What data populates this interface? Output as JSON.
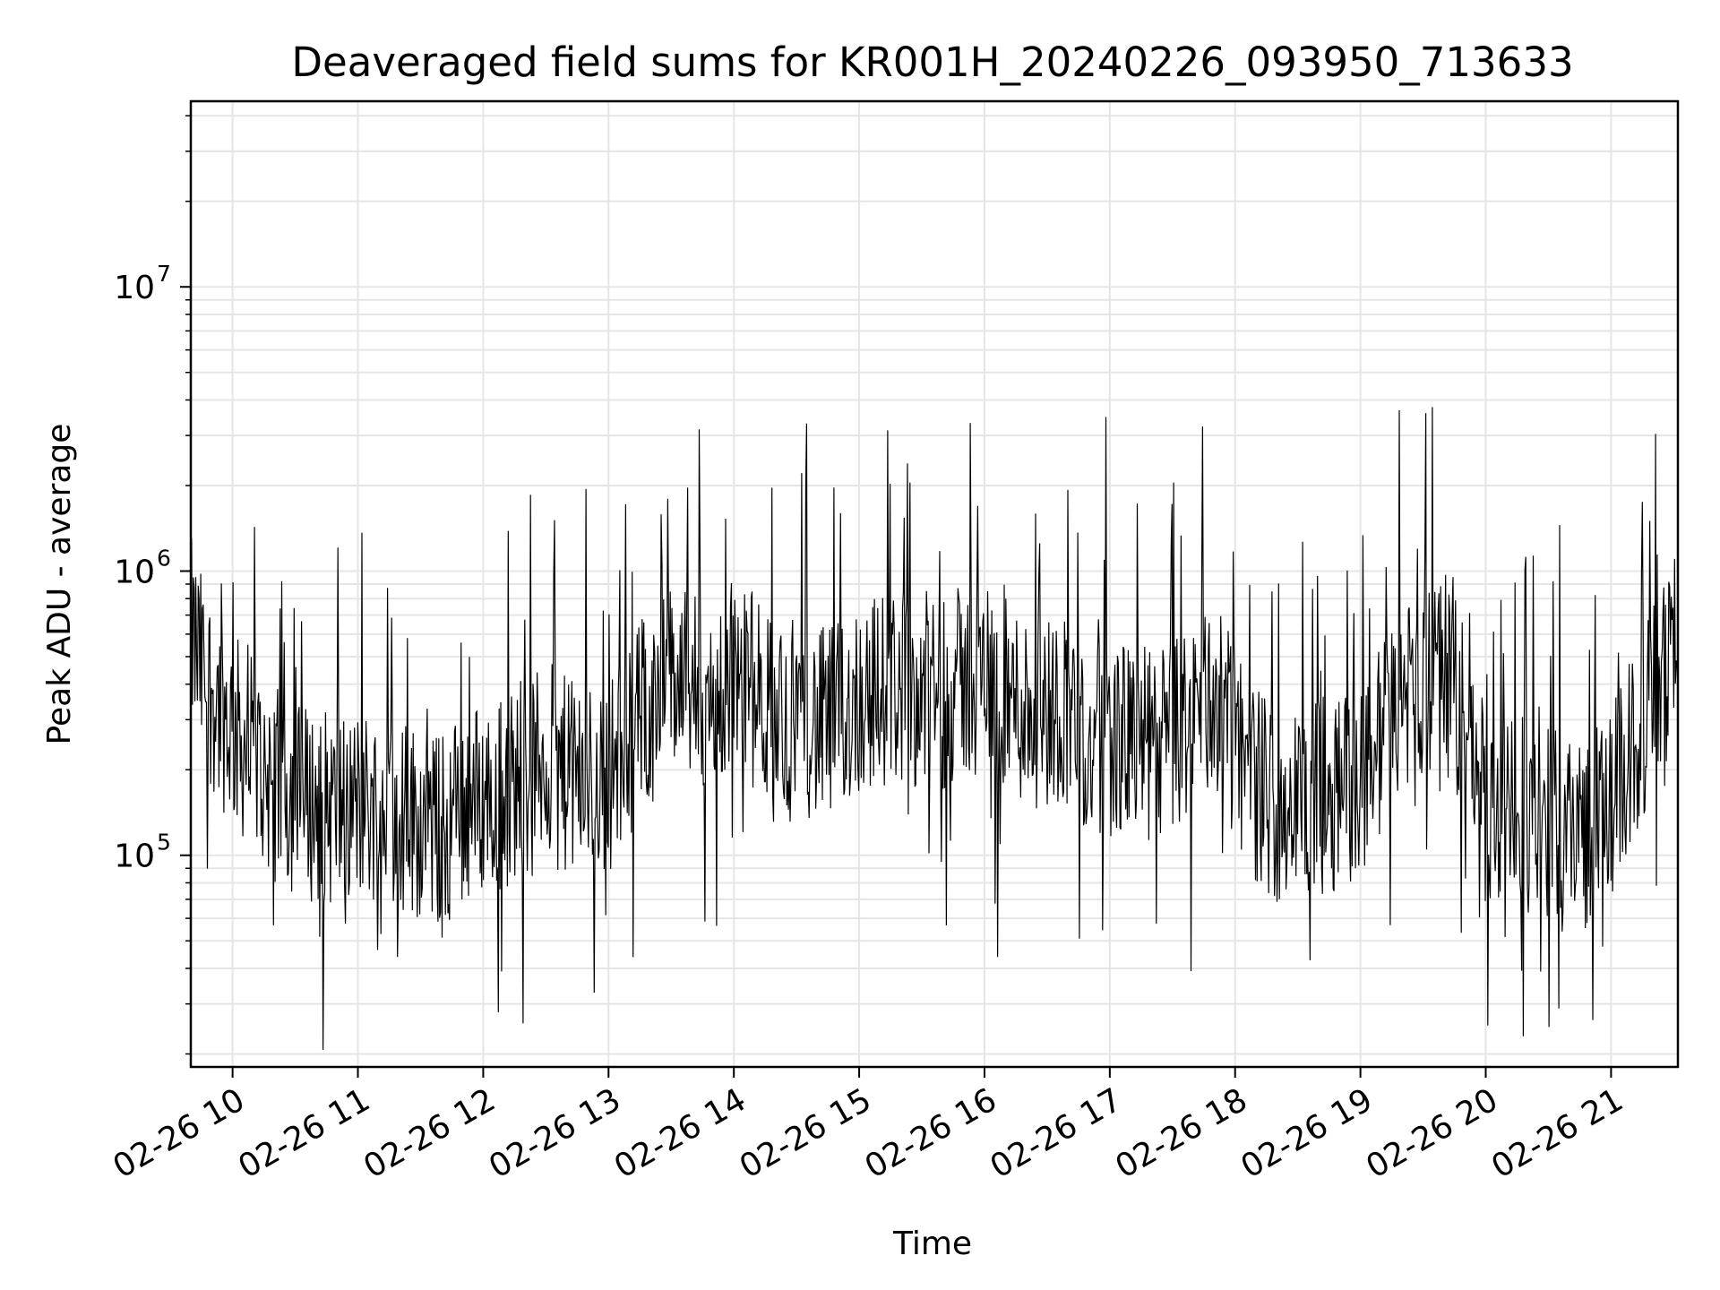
{
  "chart_data": {
    "type": "line",
    "title": "Deaveraged field sums for KR001H_20240226_093950_713633",
    "xlabel": "Time",
    "ylabel": "Peak ADU - average",
    "y_scale": "log",
    "ylim": [
      18000,
      45000000
    ],
    "xlim": [
      "2024-02-26T09:40",
      "2024-02-26T21:32"
    ],
    "x_ticks": [
      {
        "t": "2024-02-26T10:00",
        "label": "02-26 10"
      },
      {
        "t": "2024-02-26T11:00",
        "label": "02-26 11"
      },
      {
        "t": "2024-02-26T12:00",
        "label": "02-26 12"
      },
      {
        "t": "2024-02-26T13:00",
        "label": "02-26 13"
      },
      {
        "t": "2024-02-26T14:00",
        "label": "02-26 14"
      },
      {
        "t": "2024-02-26T15:00",
        "label": "02-26 15"
      },
      {
        "t": "2024-02-26T16:00",
        "label": "02-26 16"
      },
      {
        "t": "2024-02-26T17:00",
        "label": "02-26 17"
      },
      {
        "t": "2024-02-26T18:00",
        "label": "02-26 18"
      },
      {
        "t": "2024-02-26T19:00",
        "label": "02-26 19"
      },
      {
        "t": "2024-02-26T20:00",
        "label": "02-26 20"
      },
      {
        "t": "2024-02-26T21:00",
        "label": "02-26 21"
      }
    ],
    "y_ticks": [
      {
        "value": 100000,
        "base": "10",
        "exp": "5"
      },
      {
        "value": 1000000,
        "base": "10",
        "exp": "6"
      },
      {
        "value": 10000000,
        "base": "10",
        "exp": "7"
      }
    ],
    "grid": true,
    "line_color": "#000000",
    "grid_color": "#e5e5e5",
    "series": [
      {
        "x": [
          "2024-02-26T09:40",
          "2024-02-26T09:45",
          "2024-02-26T09:50",
          "2024-02-26T09:55",
          "2024-02-26T10:00",
          "2024-02-26T10:10",
          "2024-02-26T10:20",
          "2024-02-26T10:30",
          "2024-02-26T10:40",
          "2024-02-26T10:50",
          "2024-02-26T11:00",
          "2024-02-26T11:10",
          "2024-02-26T11:20",
          "2024-02-26T11:30",
          "2024-02-26T11:40",
          "2024-02-26T11:50",
          "2024-02-26T12:00",
          "2024-02-26T12:10",
          "2024-02-26T12:20",
          "2024-02-26T12:30",
          "2024-02-26T12:40",
          "2024-02-26T12:50",
          "2024-02-26T13:00",
          "2024-02-26T13:10",
          "2024-02-26T13:20",
          "2024-02-26T13:30",
          "2024-02-26T13:40",
          "2024-02-26T13:50",
          "2024-02-26T14:00",
          "2024-02-26T14:10",
          "2024-02-26T14:20",
          "2024-02-26T14:30",
          "2024-02-26T14:40",
          "2024-02-26T14:50",
          "2024-02-26T15:00",
          "2024-02-26T15:10",
          "2024-02-26T15:20",
          "2024-02-26T15:30",
          "2024-02-26T15:40",
          "2024-02-26T15:50",
          "2024-02-26T16:00",
          "2024-02-26T16:10",
          "2024-02-26T16:20",
          "2024-02-26T16:30",
          "2024-02-26T16:40",
          "2024-02-26T16:50",
          "2024-02-26T17:00",
          "2024-02-26T17:10",
          "2024-02-26T17:20",
          "2024-02-26T17:30",
          "2024-02-26T17:40",
          "2024-02-26T17:50",
          "2024-02-26T18:00",
          "2024-02-26T18:10",
          "2024-02-26T18:20",
          "2024-02-26T18:30",
          "2024-02-26T18:40",
          "2024-02-26T18:50",
          "2024-02-26T19:00",
          "2024-02-26T19:10",
          "2024-02-26T19:20",
          "2024-02-26T19:30",
          "2024-02-26T19:40",
          "2024-02-26T19:50",
          "2024-02-26T20:00",
          "2024-02-26T20:10",
          "2024-02-26T20:20",
          "2024-02-26T20:30",
          "2024-02-26T20:40",
          "2024-02-26T20:50",
          "2024-02-26T21:00",
          "2024-02-26T21:10",
          "2024-02-26T21:20",
          "2024-02-26T21:30"
        ],
        "values": [
          600000,
          450000,
          380000,
          320000,
          280000,
          220000,
          180000,
          160000,
          150000,
          145000,
          150000,
          150000,
          140000,
          130000,
          120000,
          150000,
          160000,
          170000,
          190000,
          220000,
          190000,
          180000,
          190000,
          260000,
          360000,
          420000,
          380000,
          320000,
          450000,
          380000,
          300000,
          330000,
          280000,
          300000,
          360000,
          380000,
          400000,
          380000,
          380000,
          400000,
          440000,
          360000,
          330000,
          320000,
          340000,
          220000,
          260000,
          250000,
          240000,
          260000,
          310000,
          360000,
          250000,
          180000,
          150000,
          150000,
          160000,
          170000,
          180000,
          260000,
          350000,
          400000,
          450000,
          300000,
          150000,
          130000,
          140000,
          130000,
          130000,
          120000,
          150000,
          230000,
          350000,
          500000
        ]
      }
    ]
  }
}
